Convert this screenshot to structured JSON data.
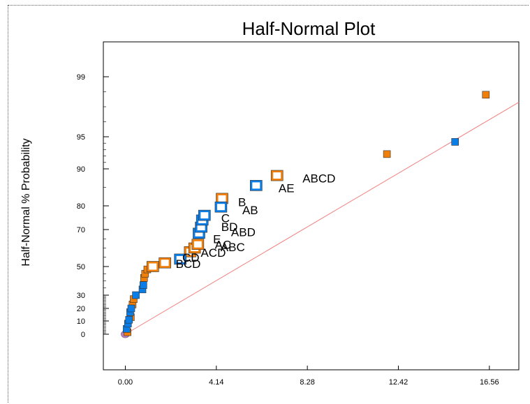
{
  "chart_data": {
    "type": "scatter",
    "title": "Half-Normal Plot",
    "xlabel": "",
    "ylabel": "Half-Normal % Probability",
    "x_ticks": [
      "0.00",
      "4.14",
      "8.28",
      "12.42",
      "16.56"
    ],
    "xlim": [
      -1.0,
      17.9
    ],
    "y_scale": "half-normal probability",
    "y_ticks": [
      "0",
      "10",
      "20",
      "30",
      "50",
      "70",
      "80",
      "90",
      "95",
      "99"
    ],
    "grid": false,
    "colors": {
      "positive": "#f07f09",
      "negative": "#0a7ee6",
      "line": "#f08080",
      "origin": "#c080c0"
    },
    "series": [
      {
        "name": "",
        "style": "filled",
        "color": "#f07f09",
        "points": [
          [
            0.1,
            1.5
          ],
          [
            0.25,
            13
          ],
          [
            0.33,
            23
          ],
          [
            0.38,
            27
          ],
          [
            0.85,
            42
          ],
          [
            0.9,
            45
          ],
          [
            1.0,
            48
          ],
          [
            11.9,
            92.3
          ],
          [
            16.4,
            97.8
          ]
        ]
      },
      {
        "name": "",
        "style": "filled",
        "color": "#0a7ee6",
        "points": [
          [
            0.06,
            4
          ],
          [
            0.12,
            8
          ],
          [
            0.17,
            11
          ],
          [
            0.22,
            17
          ],
          [
            0.27,
            20
          ],
          [
            0.48,
            30
          ],
          [
            0.78,
            34
          ],
          [
            0.82,
            37
          ],
          [
            15.0,
            94.2
          ]
        ]
      },
      {
        "name": "",
        "style": "open",
        "color": "#f07f09",
        "points": [
          [
            1.25,
            50
          ],
          [
            1.8,
            52
          ],
          [
            2.95,
            58
          ],
          [
            3.15,
            60
          ],
          [
            3.3,
            62
          ],
          [
            4.4,
            82
          ],
          [
            6.9,
            88.2
          ]
        ]
      },
      {
        "name": "",
        "style": "open",
        "color": "#0a7ee6",
        "points": [
          [
            2.5,
            54
          ],
          [
            3.35,
            68
          ],
          [
            3.45,
            71
          ],
          [
            3.5,
            74
          ],
          [
            3.6,
            76
          ],
          [
            4.35,
            79.5
          ],
          [
            5.95,
            85.5
          ]
        ]
      }
    ],
    "labels": [
      {
        "text": "ABCD",
        "x": 8.06,
        "y": 87.5
      },
      {
        "text": "AE",
        "x": 6.97,
        "y": 84.8
      },
      {
        "text": "B",
        "x": 5.13,
        "y": 81
      },
      {
        "text": "AB",
        "x": 5.32,
        "y": 78.2
      },
      {
        "text": "C",
        "x": 4.36,
        "y": 74.8
      },
      {
        "text": "BD",
        "x": 4.36,
        "y": 71.2
      },
      {
        "text": "ABD",
        "x": 4.81,
        "y": 68.6
      },
      {
        "text": "E",
        "x": 3.99,
        "y": 65
      },
      {
        "text": "AC",
        "x": 4.07,
        "y": 61.8
      },
      {
        "text": "ABC",
        "x": 4.33,
        "y": 60.5
      },
      {
        "text": "ACD",
        "x": 3.43,
        "y": 57.5
      },
      {
        "text": "CD",
        "x": 2.59,
        "y": 55
      },
      {
        "text": "BCD",
        "x": 2.29,
        "y": 51.5
      }
    ],
    "reference_line": [
      [
        0.0,
        0
      ],
      [
        17.9,
        97.3
      ]
    ]
  }
}
